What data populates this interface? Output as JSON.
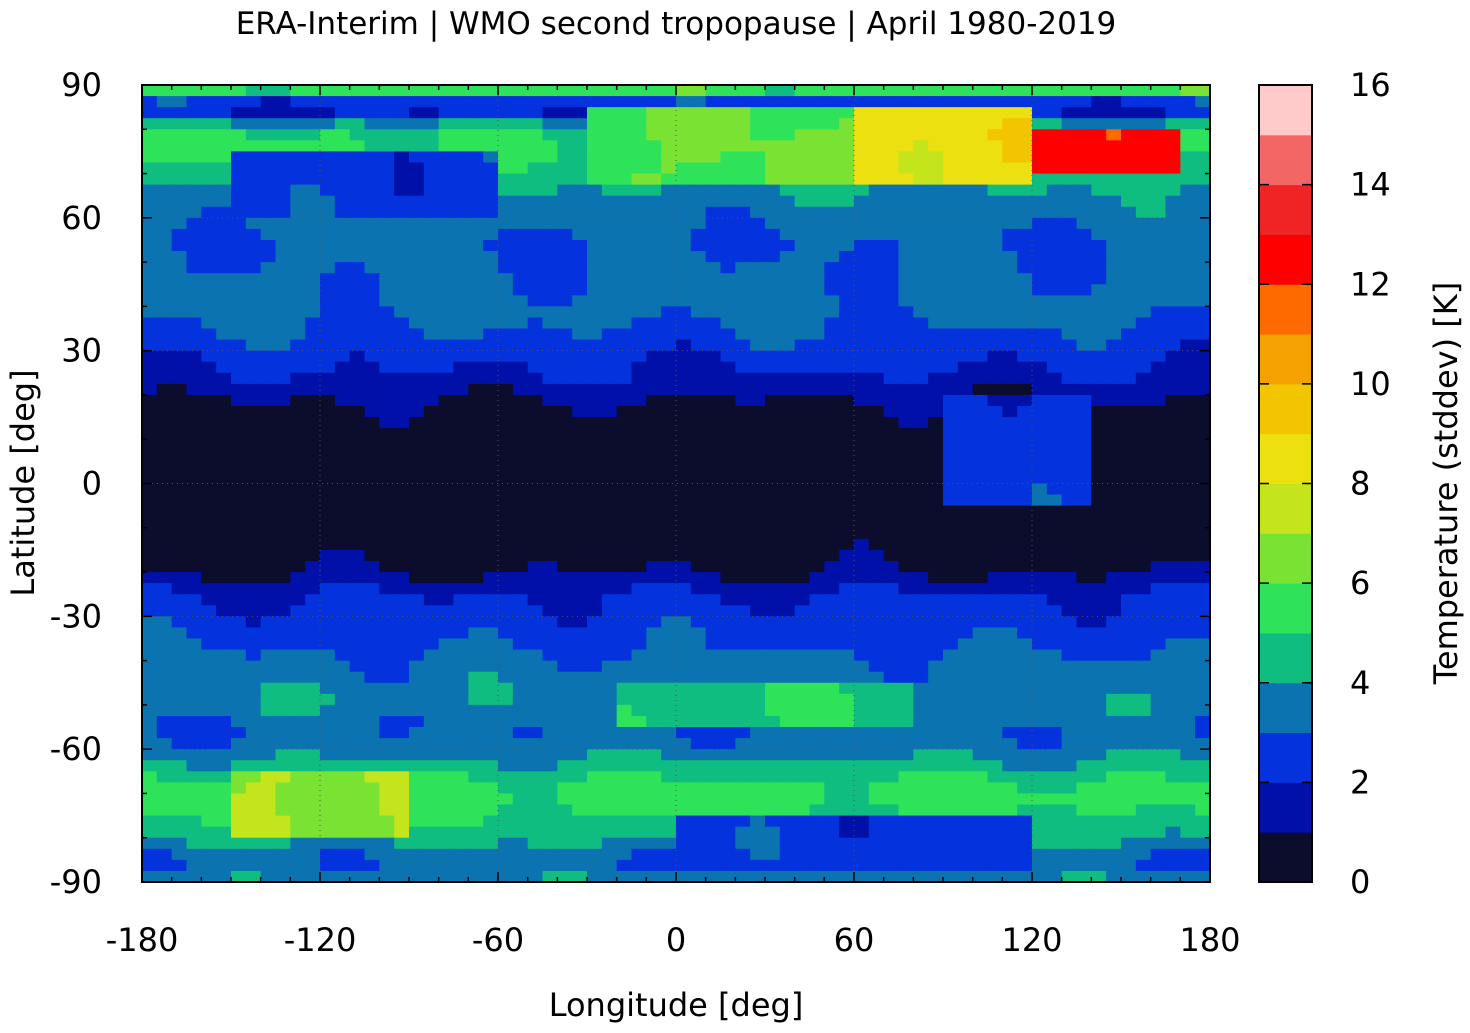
{
  "chart_data": {
    "type": "heatmap",
    "title": "ERA-Interim | WMO second tropopause | April 1980-2019",
    "xlabel": "Longitude [deg]",
    "ylabel": "Latitude [deg]",
    "colorbar_label": "Temperature (stddev) [K]",
    "xlim": [
      -180,
      180
    ],
    "ylim": [
      -90,
      90
    ],
    "x_ticks": [
      -180,
      -120,
      -60,
      0,
      60,
      120,
      180
    ],
    "y_ticks": [
      90,
      60,
      30,
      0,
      -30,
      -60,
      -90
    ],
    "colorbar_ticks": [
      0,
      2,
      4,
      6,
      8,
      10,
      12,
      14,
      16
    ],
    "grid": true,
    "colorbar": {
      "min": 0,
      "max": 16,
      "levels": [
        {
          "from": 0,
          "to": 1,
          "color": "#0c0c2c"
        },
        {
          "from": 1,
          "to": 2,
          "color": "#0010a8"
        },
        {
          "from": 2,
          "to": 3,
          "color": "#0432dc"
        },
        {
          "from": 3,
          "to": 4,
          "color": "#0a73b0"
        },
        {
          "from": 4,
          "to": 5,
          "color": "#10bd80"
        },
        {
          "from": 5,
          "to": 6,
          "color": "#2ee25a"
        },
        {
          "from": 6,
          "to": 7,
          "color": "#7ae232"
        },
        {
          "from": 7,
          "to": 8,
          "color": "#c4e41c"
        },
        {
          "from": 8,
          "to": 9,
          "color": "#ece010"
        },
        {
          "from": 9,
          "to": 10,
          "color": "#f2c402"
        },
        {
          "from": 10,
          "to": 11,
          "color": "#f5a200"
        },
        {
          "from": 11,
          "to": 12,
          "color": "#ff6a00"
        },
        {
          "from": 12,
          "to": 13,
          "color": "#ff0000"
        },
        {
          "from": 13,
          "to": 14,
          "color": "#f02424"
        },
        {
          "from": 14,
          "to": 15,
          "color": "#f26666"
        },
        {
          "from": 15,
          "to": 16,
          "color": "#ffcaca"
        }
      ]
    },
    "zonal_mean_by_latitude": [
      {
        "lat": 90,
        "value": 7.0
      },
      {
        "lat": 85,
        "value": 1.0
      },
      {
        "lat": 80,
        "value": 5.0
      },
      {
        "lat": 75,
        "value": 5.2
      },
      {
        "lat": 70,
        "value": 4.4
      },
      {
        "lat": 65,
        "value": 3.8
      },
      {
        "lat": 60,
        "value": 3.4
      },
      {
        "lat": 55,
        "value": 3.0
      },
      {
        "lat": 50,
        "value": 3.1
      },
      {
        "lat": 45,
        "value": 3.2
      },
      {
        "lat": 40,
        "value": 3.3
      },
      {
        "lat": 35,
        "value": 3.0
      },
      {
        "lat": 30,
        "value": 2.4
      },
      {
        "lat": 25,
        "value": 2.0
      },
      {
        "lat": 20,
        "value": 1.2
      },
      {
        "lat": 15,
        "value": 0.5
      },
      {
        "lat": 10,
        "value": 0.3
      },
      {
        "lat": 5,
        "value": 0.3
      },
      {
        "lat": 0,
        "value": 0.3
      },
      {
        "lat": -5,
        "value": 0.3
      },
      {
        "lat": -10,
        "value": 0.4
      },
      {
        "lat": -15,
        "value": 0.5
      },
      {
        "lat": -20,
        "value": 0.9
      },
      {
        "lat": -25,
        "value": 2.0
      },
      {
        "lat": -30,
        "value": 2.4
      },
      {
        "lat": -35,
        "value": 2.7
      },
      {
        "lat": -40,
        "value": 3.2
      },
      {
        "lat": -45,
        "value": 3.6
      },
      {
        "lat": -50,
        "value": 3.8
      },
      {
        "lat": -55,
        "value": 3.1
      },
      {
        "lat": -60,
        "value": 3.5
      },
      {
        "lat": -65,
        "value": 4.6
      },
      {
        "lat": -70,
        "value": 5.5
      },
      {
        "lat": -75,
        "value": 5.0
      },
      {
        "lat": -80,
        "value": 4.3
      },
      {
        "lat": -85,
        "value": 3.0
      },
      {
        "lat": -90,
        "value": 3.8
      }
    ],
    "regional_features": [
      {
        "lon": [
          100,
          170
        ],
        "lat": [
          70,
          80
        ],
        "value": 12.5
      },
      {
        "lon": [
          40,
          120
        ],
        "lat": [
          68,
          85
        ],
        "value": 8.5
      },
      {
        "lon": [
          -30,
          60
        ],
        "lat": [
          68,
          85
        ],
        "value": 6.0
      },
      {
        "lon": [
          -150,
          -60
        ],
        "lat": [
          60,
          75
        ],
        "value": 2.5
      },
      {
        "lon": [
          -150,
          -90
        ],
        "lat": [
          -80,
          -65
        ],
        "value": 7.0
      },
      {
        "lon": [
          0,
          120
        ],
        "lat": [
          -88,
          -75
        ],
        "value": 2.5
      },
      {
        "lon": [
          -20,
          80
        ],
        "lat": [
          -55,
          -45
        ],
        "value": 4.8
      },
      {
        "lon": [
          90,
          140
        ],
        "lat": [
          -5,
          20
        ],
        "value": 2.5
      }
    ]
  }
}
